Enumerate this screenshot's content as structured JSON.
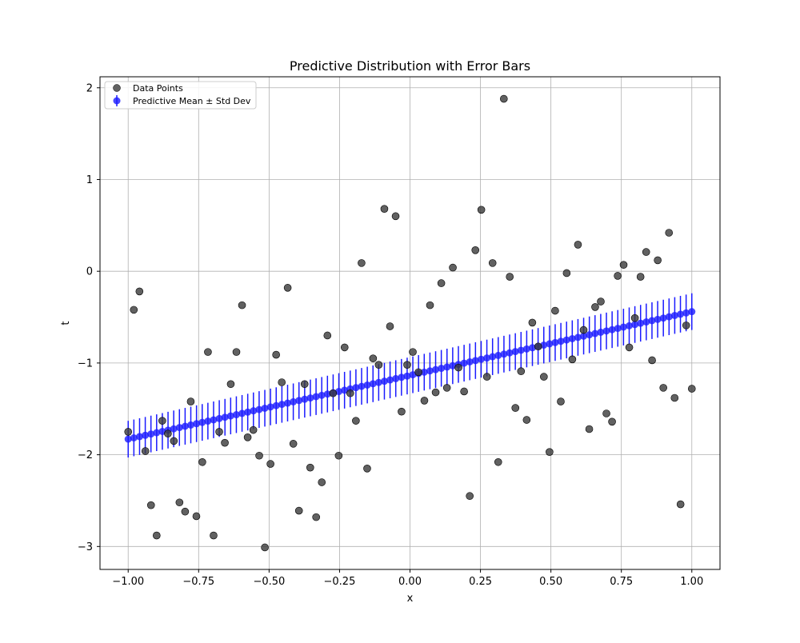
{
  "chart_data": {
    "type": "scatter",
    "title": "Predictive Distribution with Error Bars",
    "xlabel": "x",
    "ylabel": "t",
    "xlim": [
      -1.1,
      1.1
    ],
    "ylim": [
      -3.25,
      2.12
    ],
    "grid": true,
    "legend_position": "top-left",
    "x_ticks": [
      -1.0,
      -0.75,
      -0.5,
      -0.25,
      0.0,
      0.25,
      0.5,
      0.75,
      1.0
    ],
    "x_tick_labels": [
      "−1.00",
      "−0.75",
      "−0.50",
      "−0.25",
      "0.00",
      "0.25",
      "0.50",
      "0.75",
      "1.00"
    ],
    "y_ticks": [
      -3,
      -2,
      -1,
      0,
      1,
      2
    ],
    "y_tick_labels": [
      "−3",
      "−2",
      "−1",
      "0",
      "1",
      "2"
    ],
    "series": [
      {
        "name": "Data Points",
        "kind": "scatter",
        "color": "#3a3a3a",
        "points": [
          [
            -1.0,
            -1.75
          ],
          [
            -0.98,
            -0.42
          ],
          [
            -0.96,
            -0.22
          ],
          [
            -0.939,
            -1.96
          ],
          [
            -0.919,
            -2.55
          ],
          [
            -0.899,
            -2.88
          ],
          [
            -0.879,
            -1.63
          ],
          [
            -0.859,
            -1.77
          ],
          [
            -0.838,
            -1.85
          ],
          [
            -0.818,
            -2.52
          ],
          [
            -0.798,
            -2.62
          ],
          [
            -0.778,
            -1.42
          ],
          [
            -0.758,
            -2.67
          ],
          [
            -0.737,
            -2.08
          ],
          [
            -0.717,
            -0.88
          ],
          [
            -0.697,
            -2.88
          ],
          [
            -0.677,
            -1.75
          ],
          [
            -0.657,
            -1.87
          ],
          [
            -0.636,
            -1.23
          ],
          [
            -0.616,
            -0.88
          ],
          [
            -0.596,
            -0.37
          ],
          [
            -0.576,
            -1.81
          ],
          [
            -0.556,
            -1.73
          ],
          [
            -0.535,
            -2.01
          ],
          [
            -0.515,
            -3.01
          ],
          [
            -0.495,
            -2.1
          ],
          [
            -0.475,
            -0.91
          ],
          [
            -0.455,
            -1.21
          ],
          [
            -0.434,
            -0.18
          ],
          [
            -0.414,
            -1.88
          ],
          [
            -0.394,
            -2.61
          ],
          [
            -0.374,
            -1.23
          ],
          [
            -0.354,
            -2.14
          ],
          [
            -0.333,
            -2.68
          ],
          [
            -0.313,
            -2.3
          ],
          [
            -0.293,
            -0.7
          ],
          [
            -0.273,
            -1.33
          ],
          [
            -0.253,
            -2.01
          ],
          [
            -0.232,
            -0.83
          ],
          [
            -0.212,
            -1.33
          ],
          [
            -0.192,
            -1.63
          ],
          [
            -0.172,
            0.09
          ],
          [
            -0.152,
            -2.15
          ],
          [
            -0.131,
            -0.95
          ],
          [
            -0.111,
            -1.02
          ],
          [
            -0.091,
            0.68
          ],
          [
            -0.071,
            -0.6
          ],
          [
            -0.051,
            0.6
          ],
          [
            -0.03,
            -1.53
          ],
          [
            -0.01,
            -1.02
          ],
          [
            0.01,
            -0.88
          ],
          [
            0.03,
            -1.1
          ],
          [
            0.051,
            -1.41
          ],
          [
            0.071,
            -0.37
          ],
          [
            0.091,
            -1.32
          ],
          [
            0.111,
            -0.13
          ],
          [
            0.131,
            -1.27
          ],
          [
            0.152,
            0.04
          ],
          [
            0.172,
            -1.05
          ],
          [
            0.192,
            -1.31
          ],
          [
            0.212,
            -2.45
          ],
          [
            0.232,
            0.23
          ],
          [
            0.253,
            0.67
          ],
          [
            0.273,
            -1.15
          ],
          [
            0.293,
            0.09
          ],
          [
            0.313,
            -2.08
          ],
          [
            0.333,
            1.88
          ],
          [
            0.354,
            -0.06
          ],
          [
            0.374,
            -1.49
          ],
          [
            0.394,
            -1.09
          ],
          [
            0.414,
            -1.62
          ],
          [
            0.434,
            -0.56
          ],
          [
            0.455,
            -0.82
          ],
          [
            0.475,
            -1.15
          ],
          [
            0.495,
            -1.97
          ],
          [
            0.515,
            -0.43
          ],
          [
            0.535,
            -1.42
          ],
          [
            0.556,
            -0.02
          ],
          [
            0.576,
            -0.96
          ],
          [
            0.596,
            0.29
          ],
          [
            0.616,
            -0.64
          ],
          [
            0.636,
            -1.72
          ],
          [
            0.657,
            -0.39
          ],
          [
            0.677,
            -0.33
          ],
          [
            0.697,
            -1.55
          ],
          [
            0.717,
            -1.64
          ],
          [
            0.737,
            -0.05
          ],
          [
            0.758,
            0.07
          ],
          [
            0.778,
            -0.83
          ],
          [
            0.798,
            -0.51
          ],
          [
            0.818,
            -0.06
          ],
          [
            0.838,
            0.21
          ],
          [
            0.859,
            -0.97
          ],
          [
            0.879,
            0.12
          ],
          [
            0.899,
            -1.27
          ],
          [
            0.919,
            0.42
          ],
          [
            0.939,
            -1.38
          ],
          [
            0.96,
            -2.54
          ],
          [
            0.98,
            -0.59
          ],
          [
            1.0,
            -1.28
          ]
        ]
      },
      {
        "name": "Predictive Mean ± Std Dev",
        "kind": "errorbar",
        "color": "#1a1aff",
        "x_start": -1.0,
        "x_end": 1.0,
        "n_points": 100,
        "mean_at_start": -1.83,
        "mean_at_end": -0.44,
        "std_dev": 0.2
      }
    ]
  }
}
